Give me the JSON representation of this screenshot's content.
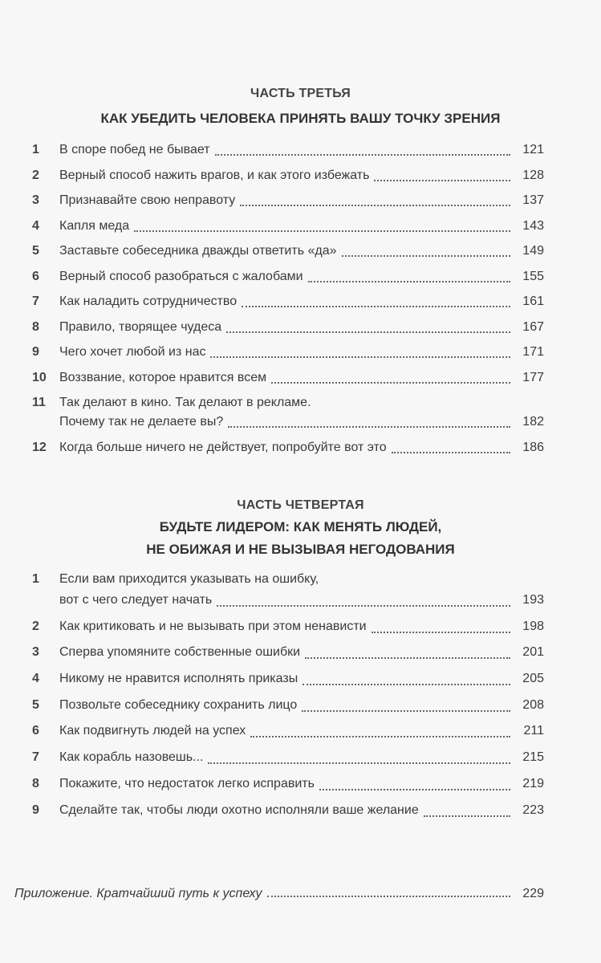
{
  "part3": {
    "label": "ЧАСТЬ ТРЕТЬЯ",
    "title": "КАК УБЕДИТЬ ЧЕЛОВЕКА ПРИНЯТЬ ВАШУ ТОЧКУ ЗРЕНИЯ",
    "items": [
      {
        "num": "1",
        "lines": [
          "В споре побед не бывает"
        ],
        "page": "121"
      },
      {
        "num": "2",
        "lines": [
          "Верный способ нажить врагов, и как этого избежать"
        ],
        "page": "128"
      },
      {
        "num": "3",
        "lines": [
          "Признавайте свою неправоту"
        ],
        "page": "137"
      },
      {
        "num": "4",
        "lines": [
          "Капля меда"
        ],
        "page": "143"
      },
      {
        "num": "5",
        "lines": [
          "Заставьте собеседника дважды ответить «да»"
        ],
        "page": "149"
      },
      {
        "num": "6",
        "lines": [
          "Верный способ разобраться с жалобами"
        ],
        "page": "155"
      },
      {
        "num": "7",
        "lines": [
          "Как наладить сотрудничество"
        ],
        "page": "161"
      },
      {
        "num": "8",
        "lines": [
          "Правило, творящее чудеса"
        ],
        "page": "167"
      },
      {
        "num": "9",
        "lines": [
          "Чего хочет любой из нас"
        ],
        "page": "171"
      },
      {
        "num": "10",
        "lines": [
          "Воззвание, которое нравится всем"
        ],
        "page": "177"
      },
      {
        "num": "11",
        "lines": [
          "Так делают в кино. Так делают в рекламе.",
          "Почему так не делаете вы?"
        ],
        "page": "182"
      },
      {
        "num": "12",
        "lines": [
          "Когда больше ничего не действует, попробуйте вот это"
        ],
        "page": "186"
      }
    ]
  },
  "part4": {
    "label": "ЧАСТЬ ЧЕТВЕРТАЯ",
    "title_line1": "БУДЬТЕ ЛИДЕРОМ: КАК МЕНЯТЬ ЛЮДЕЙ,",
    "title_line2": "НЕ ОБИЖАЯ И НЕ ВЫЗЫВАЯ НЕГОДОВАНИЯ",
    "items": [
      {
        "num": "1",
        "lines": [
          "Если вам приходится указывать на ошибку,",
          "вот с чего следует начать"
        ],
        "page": "193"
      },
      {
        "num": "2",
        "lines": [
          "Как критиковать и не вызывать при этом ненависти"
        ],
        "page": "198"
      },
      {
        "num": "3",
        "lines": [
          "Сперва упомяните собственные ошибки"
        ],
        "page": "201"
      },
      {
        "num": "4",
        "lines": [
          "Никому не нравится исполнять приказы"
        ],
        "page": "205"
      },
      {
        "num": "5",
        "lines": [
          "Позвольте собеседнику сохранить лицо"
        ],
        "page": "208"
      },
      {
        "num": "6",
        "lines": [
          "Как подвигнуть людей на успех"
        ],
        "page": "211"
      },
      {
        "num": "7",
        "lines": [
          "Как корабль назовешь..."
        ],
        "page": "215"
      },
      {
        "num": "8",
        "lines": [
          "Покажите, что недостаток легко исправить"
        ],
        "page": "219"
      },
      {
        "num": "9",
        "lines": [
          "Сделайте так, чтобы люди охотно исполняли ваше желание"
        ],
        "page": "223"
      }
    ]
  },
  "appendix": {
    "title": "Приложение. Кратчайший путь к успеху",
    "page": "229"
  }
}
